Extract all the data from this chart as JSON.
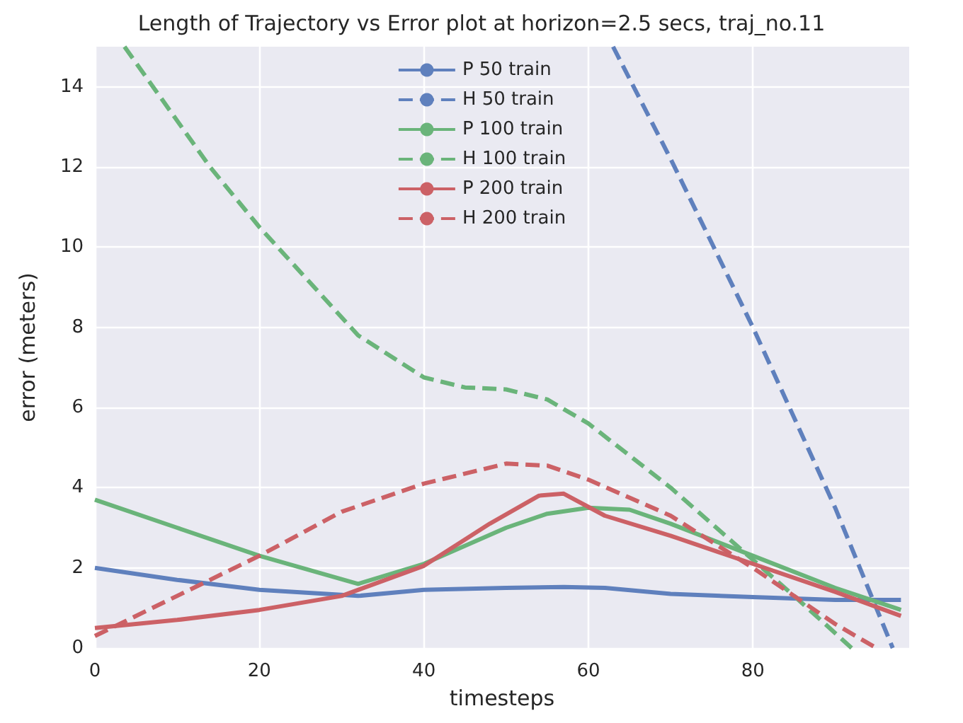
{
  "chart_data": {
    "type": "line",
    "title": "Length of Trajectory vs Error plot at horizon=2.5 secs, traj_no.11",
    "xlabel": "timesteps",
    "ylabel": "error (meters)",
    "xlim": [
      0,
      99
    ],
    "xticks": [
      0,
      20,
      40,
      60,
      80
    ],
    "ylim": [
      0,
      15
    ],
    "yticks": [
      0,
      2,
      4,
      6,
      8,
      10,
      12,
      14
    ],
    "grid": true,
    "legend": "top",
    "marker": "none",
    "series": [
      {
        "name": "P 50 train",
        "color": "#5f80bd",
        "line_style": "solid",
        "x": [
          0,
          10,
          20,
          32,
          40,
          50,
          57,
          62,
          70,
          80,
          90,
          98
        ],
        "values": [
          2.0,
          1.7,
          1.45,
          1.3,
          1.45,
          1.5,
          1.52,
          1.5,
          1.35,
          1.27,
          1.2,
          1.2
        ]
      },
      {
        "name": "H 50 train",
        "color": "#5f80bd",
        "line_style": "dashed",
        "x": [
          63,
          70,
          80,
          90,
          97
        ],
        "values": [
          15,
          12.2,
          8.0,
          3.5,
          0
        ]
      },
      {
        "name": "P 100 train",
        "color": "#6ab47a",
        "line_style": "solid",
        "x": [
          0,
          10,
          20,
          32,
          40,
          50,
          55,
          60,
          65,
          70,
          80,
          90,
          98
        ],
        "values": [
          3.7,
          3.0,
          2.3,
          1.6,
          2.1,
          3.0,
          3.35,
          3.5,
          3.45,
          3.1,
          2.3,
          1.5,
          0.95
        ]
      },
      {
        "name": "H 100 train",
        "color": "#6ab47a",
        "line_style": "dashed",
        "x": [
          3.6,
          14,
          20,
          32,
          40,
          45,
          50,
          55,
          60,
          65,
          70,
          75,
          80,
          85,
          92
        ],
        "values": [
          15,
          12.0,
          10.5,
          7.8,
          6.75,
          6.5,
          6.45,
          6.2,
          5.6,
          4.8,
          4.0,
          3.1,
          2.2,
          1.3,
          0
        ]
      },
      {
        "name": "P 200 train",
        "color": "#cc6166",
        "line_style": "solid",
        "x": [
          0,
          10,
          20,
          30,
          40,
          48,
          54,
          57,
          62,
          70,
          80,
          90,
          98
        ],
        "values": [
          0.5,
          0.7,
          0.95,
          1.3,
          2.05,
          3.1,
          3.8,
          3.85,
          3.3,
          2.8,
          2.1,
          1.4,
          0.8
        ]
      },
      {
        "name": "H 200 train",
        "color": "#cc6166",
        "line_style": "dashed",
        "x": [
          0,
          10,
          20,
          30,
          40,
          50,
          55,
          60,
          70,
          80,
          90,
          95
        ],
        "values": [
          0.3,
          1.3,
          2.3,
          3.4,
          4.1,
          4.6,
          4.55,
          4.2,
          3.3,
          2.0,
          0.6,
          0
        ]
      }
    ]
  }
}
